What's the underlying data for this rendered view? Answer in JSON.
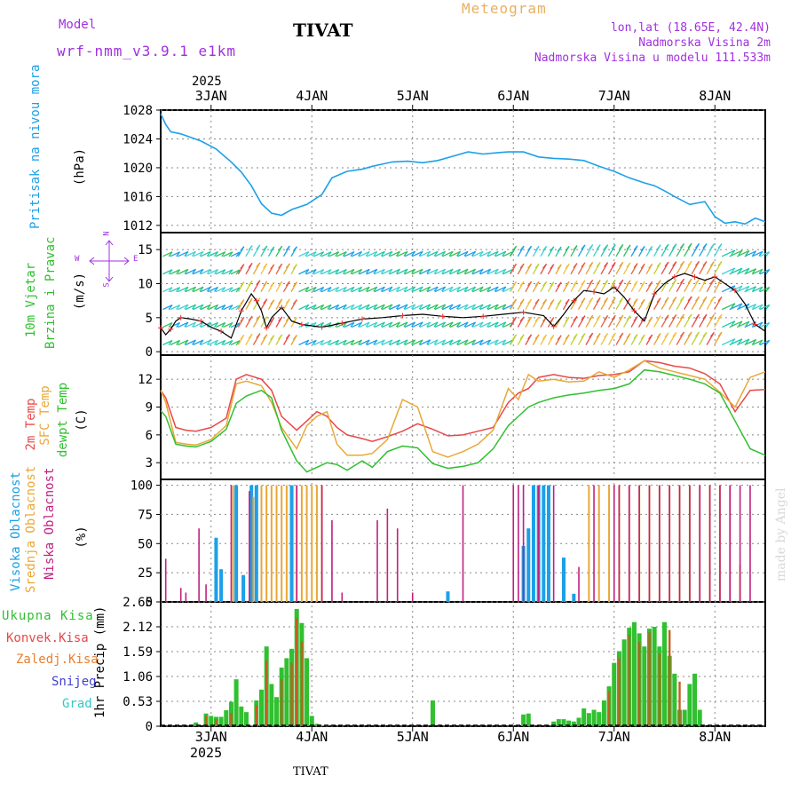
{
  "header": {
    "model_label": "Model",
    "model_name": "wrf-nmm_v3.9.1 e1km",
    "station": "TIVAT",
    "meteogram": "Meteogram",
    "lonlat": "lon,lat (18.65E, 42.4N)",
    "altitude": "Nadmorska Visina 2m",
    "model_altitude": "Nadmorska Visina u modelu 111.533m",
    "footer_station": "TIVAT",
    "watermark": "made by Angel"
  },
  "colors": {
    "model": "#a030e0",
    "meteogram": "#e8b060",
    "pressure": "#1ca0e8",
    "t2m": "#e84848",
    "tsfc": "#e8a838",
    "tdew": "#30c030",
    "high_cloud": "#1ca0e8",
    "mid_cloud": "#e8a838",
    "low_cloud": "#c02080",
    "rain_total": "#30c030",
    "rain_conv": "#e84848",
    "rain_frz": "#e88030",
    "snow": "#4040d0",
    "hail": "#30c8c8",
    "wind_line": "#000000",
    "gust_marker": "#e83030"
  },
  "time_axis": {
    "year": "2025",
    "days": [
      "3JAN",
      "4JAN",
      "5JAN",
      "6JAN",
      "7JAN",
      "8JAN"
    ],
    "start_label": "2 Jan 12:00 UTC",
    "end_label": "8 Jan 12:00 UTC"
  },
  "chart_data": [
    {
      "type": "line",
      "id": "pressure",
      "ylabel_main": "Pritisak na nivou mora",
      "ylabel_unit": "(hPa)",
      "ylim": [
        1011,
        1028
      ],
      "yticks": [
        "1012",
        "1016",
        "1020",
        "1024",
        "1028"
      ],
      "series": [
        {
          "values_time_day_offset": [
            0,
            0.05,
            0.1,
            0.2,
            0.4,
            0.55,
            0.7,
            0.8,
            0.9,
            1.0,
            1.1,
            1.2,
            1.3,
            1.45,
            1.6,
            1.7,
            1.85,
            2.0,
            2.1,
            2.2,
            2.3,
            2.45,
            2.6,
            2.75,
            2.9,
            3.05,
            3.2,
            3.35,
            3.45,
            3.6,
            3.75,
            3.9,
            4.05,
            4.2,
            4.35,
            4.5,
            4.65,
            4.8,
            4.9,
            5.0,
            5.1,
            5.25,
            5.4,
            5.5,
            5.6,
            5.7,
            5.8,
            5.9,
            6.0
          ],
          "values": [
            1027.5,
            1026.0,
            1025.0,
            1024.7,
            1023.7,
            1022.6,
            1020.8,
            1019.4,
            1017.5,
            1015.0,
            1013.7,
            1013.4,
            1014.2,
            1014.9,
            1016.3,
            1018.6,
            1019.5,
            1019.8,
            1020.2,
            1020.5,
            1020.8,
            1020.9,
            1020.7,
            1021.0,
            1021.6,
            1022.2,
            1021.9,
            1022.1,
            1022.2,
            1022.2,
            1021.5,
            1021.3,
            1021.2,
            1021.0,
            1020.2,
            1019.5,
            1018.6,
            1017.9,
            1017.5,
            1016.8,
            1016.0,
            1014.9,
            1015.3,
            1013.2,
            1012.3,
            1012.5,
            1012.2,
            1013.0,
            1012.5
          ]
        }
      ]
    },
    {
      "type": "line",
      "id": "wind",
      "ylabel_main": "10m Vjetar",
      "ylabel_sub": "Brzina i Pravac",
      "ylabel_unit": "(m/s)",
      "compass": {
        "n": "N",
        "s": "S",
        "w": "W",
        "e": "E"
      },
      "ylim": [
        -0.5,
        17.5
      ],
      "yticks": [
        "0",
        "5",
        "10",
        "15"
      ],
      "series": [
        {
          "name": "speed",
          "time": [
            0,
            0.05,
            0.1,
            0.15,
            0.2,
            0.3,
            0.4,
            0.5,
            0.6,
            0.7,
            0.8,
            0.9,
            0.95,
            1.0,
            1.05,
            1.1,
            1.2,
            1.3,
            1.4,
            1.5,
            1.6,
            1.7,
            1.8,
            1.9,
            2.0,
            2.2,
            2.4,
            2.6,
            2.8,
            3.0,
            3.2,
            3.4,
            3.6,
            3.8,
            3.9,
            4.0,
            4.1,
            4.2,
            4.3,
            4.4,
            4.5,
            4.6,
            4.7,
            4.8,
            4.9,
            5.0,
            5.1,
            5.2,
            5.3,
            5.4,
            5.5,
            5.6,
            5.7,
            5.8,
            5.9,
            6.0
          ],
          "values": [
            3.5,
            2.5,
            3.3,
            4.5,
            5.0,
            4.8,
            4.5,
            3.6,
            3.0,
            2.0,
            6.0,
            8.5,
            7.5,
            6.0,
            3.5,
            5.0,
            6.5,
            4.5,
            4.0,
            3.8,
            3.6,
            3.9,
            4.2,
            4.5,
            4.8,
            5.0,
            5.3,
            5.5,
            5.2,
            5.0,
            5.2,
            5.5,
            5.8,
            5.3,
            3.7,
            5.5,
            7.5,
            9.0,
            8.8,
            8.5,
            9.5,
            8.0,
            6.0,
            4.5,
            8.5,
            10.0,
            11.0,
            11.5,
            11.0,
            10.5,
            11.0,
            10.0,
            9.0,
            7.0,
            4.0,
            3.0
          ]
        }
      ]
    },
    {
      "type": "line",
      "id": "temperature",
      "ylabel_lines": [
        "2m Temp",
        "SFC Temp",
        "dewpt Temp"
      ],
      "ylabel_unit": "(C)",
      "ylim": [
        1.2,
        14.6
      ],
      "yticks": [
        "3",
        "6",
        "9",
        "12"
      ],
      "time": [
        0,
        0.05,
        0.15,
        0.25,
        0.35,
        0.5,
        0.65,
        0.75,
        0.85,
        1.0,
        1.1,
        1.2,
        1.35,
        1.45,
        1.55,
        1.65,
        1.75,
        1.85,
        2.0,
        2.1,
        2.25,
        2.4,
        2.55,
        2.7,
        2.85,
        3.0,
        3.15,
        3.3,
        3.45,
        3.55,
        3.65,
        3.75,
        3.9,
        4.05,
        4.2,
        4.35,
        4.5,
        4.65,
        4.8,
        4.95,
        5.1,
        5.25,
        5.4,
        5.55,
        5.7,
        5.85,
        6.0
      ],
      "series": [
        {
          "name": "2m Temp",
          "values": [
            10.8,
            10.0,
            6.8,
            6.5,
            6.4,
            6.8,
            7.8,
            12.0,
            12.5,
            12.0,
            10.8,
            8.0,
            6.5,
            7.5,
            8.5,
            8.0,
            6.8,
            6.0,
            5.6,
            5.3,
            5.8,
            6.4,
            7.2,
            6.6,
            5.9,
            6.0,
            6.4,
            6.8,
            9.5,
            10.5,
            11.0,
            12.2,
            12.5,
            12.2,
            12.1,
            12.4,
            12.5,
            12.8,
            14.0,
            13.8,
            13.4,
            13.2,
            12.6,
            11.5,
            8.5,
            10.8,
            10.9
          ]
        },
        {
          "name": "SFC Temp",
          "values": [
            10.8,
            9.5,
            5.2,
            5.0,
            4.9,
            5.5,
            7.0,
            11.5,
            11.8,
            11.3,
            9.5,
            6.8,
            4.5,
            7.0,
            8.0,
            8.5,
            5.0,
            3.8,
            3.8,
            4.0,
            5.5,
            9.8,
            9.0,
            4.2,
            3.6,
            4.2,
            5.0,
            6.5,
            11.0,
            9.8,
            12.5,
            11.8,
            12.0,
            11.7,
            11.8,
            12.8,
            12.2,
            13.0,
            14.0,
            13.2,
            12.8,
            12.4,
            12.0,
            10.6,
            9.0,
            12.2,
            12.8
          ]
        },
        {
          "name": "dewpt Temp",
          "values": [
            8.6,
            8.0,
            5.0,
            4.8,
            4.7,
            5.3,
            6.6,
            9.4,
            10.2,
            10.8,
            10.0,
            6.5,
            3.2,
            2.0,
            2.5,
            3.0,
            2.8,
            2.2,
            3.2,
            2.5,
            4.2,
            4.8,
            4.6,
            2.9,
            2.4,
            2.6,
            3.0,
            4.5,
            7.0,
            8.0,
            9.0,
            9.5,
            10.0,
            10.3,
            10.5,
            10.8,
            11.0,
            11.5,
            13.0,
            12.8,
            12.4,
            12.0,
            11.5,
            10.5,
            7.5,
            4.5,
            3.8
          ]
        }
      ]
    },
    {
      "type": "bar",
      "id": "cloud",
      "ylabel_lines": [
        "Visoka Oblacnost",
        "Srednja Oblacnost",
        "Niska Oblacnost"
      ],
      "ylabel_unit": "(%)",
      "ylim": [
        0,
        105
      ],
      "yticks": [
        "0",
        "25",
        "50",
        "75",
        "100"
      ],
      "series": [
        {
          "name": "Visoka Oblacnost",
          "time": [
            0.55,
            0.6,
            0.75,
            0.82,
            0.9,
            0.95,
            1.3,
            2.85,
            3.6,
            3.65,
            3.7,
            3.75,
            3.8,
            3.85,
            4.0,
            4.1
          ],
          "values": [
            55,
            28,
            100,
            23,
            100,
            100,
            100,
            9,
            48,
            63,
            100,
            100,
            100,
            100,
            38,
            7
          ]
        },
        {
          "name": "Srednja Oblacnost",
          "time": [
            0.72,
            0.92,
            1.0,
            1.05,
            1.1,
            1.15,
            1.2,
            1.25,
            1.35,
            1.4,
            1.45,
            1.5,
            1.55,
            1.6,
            4.25,
            4.35,
            4.45,
            4.55,
            4.65,
            4.75,
            4.85,
            4.95,
            5.05,
            5.15,
            5.25,
            5.35,
            5.45,
            5.55,
            5.65,
            5.75
          ],
          "values": [
            100,
            90,
            100,
            100,
            100,
            100,
            100,
            100,
            100,
            100,
            100,
            100,
            100,
            100,
            100,
            100,
            100,
            100,
            100,
            100,
            100,
            100,
            100,
            100,
            100,
            100,
            100,
            100,
            100,
            32
          ]
        },
        {
          "name": "Niska Oblacnost",
          "time": [
            0.05,
            0.2,
            0.25,
            0.38,
            0.45,
            0.7,
            0.88,
            1.35,
            1.6,
            1.7,
            1.8,
            2.15,
            2.25,
            2.35,
            2.5,
            3.0,
            3.5,
            3.55,
            3.6,
            3.75,
            3.9,
            4.15,
            4.3,
            4.5,
            4.55,
            4.65,
            4.75,
            4.85,
            4.95,
            5.05,
            5.15,
            5.25,
            5.35,
            5.45,
            5.55,
            5.65,
            5.75,
            5.85
          ],
          "values": [
            37,
            12,
            8,
            63,
            15,
            100,
            95,
            100,
            100,
            70,
            8,
            70,
            80,
            63,
            8,
            100,
            100,
            100,
            100,
            100,
            100,
            30,
            100,
            100,
            100,
            100,
            100,
            100,
            100,
            100,
            100,
            100,
            100,
            100,
            100,
            100,
            100,
            100
          ]
        }
      ]
    },
    {
      "type": "bar",
      "id": "precip",
      "legend": [
        "Ukupna Kisa",
        "Konvek.Kisa",
        "Zaledj.Kisa",
        "Snijeg",
        "Grad"
      ],
      "ylabel_unit": "1hr Precip (mm)",
      "ylim": [
        0,
        2.65
      ],
      "yticks": [
        "0",
        "0.53",
        "1.06",
        "1.59",
        "2.12",
        "2.65"
      ],
      "series": [
        {
          "name": "Ukupna Kisa",
          "time": [
            0.35,
            0.45,
            0.5,
            0.55,
            0.6,
            0.65,
            0.7,
            0.75,
            0.8,
            0.85,
            0.9,
            0.95,
            1.0,
            1.05,
            1.1,
            1.15,
            1.2,
            1.25,
            1.3,
            1.35,
            1.4,
            1.45,
            1.5,
            1.55,
            1.6,
            1.65,
            2.7,
            3.6,
            3.65,
            3.9,
            3.95,
            4.0,
            4.05,
            4.1,
            4.15,
            4.2,
            4.25,
            4.3,
            4.35,
            4.4,
            4.45,
            4.5,
            4.55,
            4.6,
            4.65,
            4.7,
            4.75,
            4.8,
            4.85,
            4.9,
            4.95,
            5.0,
            5.05,
            5.1,
            5.15,
            5.2,
            5.25,
            5.3,
            5.35,
            5.4,
            5.45,
            5.5,
            5.55,
            5.6,
            5.65,
            5.7,
            5.75,
            5.8,
            5.85,
            5.9
          ],
          "values": [
            0.08,
            0.27,
            0.22,
            0.2,
            0.2,
            0.34,
            0.52,
            1.0,
            0.42,
            0.3,
            0.02,
            0.55,
            0.78,
            1.7,
            0.9,
            0.62,
            1.25,
            1.45,
            1.65,
            2.5,
            2.2,
            1.45,
            0.22,
            0.05,
            0.02,
            0.02,
            0.55,
            0.25,
            0.27,
            0.1,
            0.15,
            0.15,
            0.12,
            0.1,
            0.18,
            0.38,
            0.28,
            0.35,
            0.3,
            0.55,
            0.85,
            1.35,
            1.6,
            1.85,
            2.1,
            2.22,
            1.98,
            1.7,
            2.08,
            2.12,
            1.7,
            2.22,
            1.5,
            1.12,
            0.35,
            0.35,
            0.9,
            1.12,
            0.35,
            0.0,
            0.0,
            0.0,
            0.0,
            0.0,
            0.0,
            0.0,
            0.0,
            0.0,
            0.0,
            0.0
          ]
        },
        {
          "name": "Konvek.Kisa",
          "time": [
            0.45,
            0.55,
            0.7,
            0.95,
            1.05,
            1.2,
            1.3,
            1.35,
            1.4,
            4.45,
            4.55,
            4.65,
            4.75,
            4.85,
            4.95,
            5.05,
            5.15
          ],
          "values": [
            0.22,
            0.15,
            0.28,
            0.45,
            1.4,
            1.0,
            1.35,
            2.3,
            1.8,
            0.75,
            1.45,
            1.95,
            1.8,
            2.0,
            1.55,
            2.05,
            0.95
          ]
        }
      ]
    }
  ]
}
